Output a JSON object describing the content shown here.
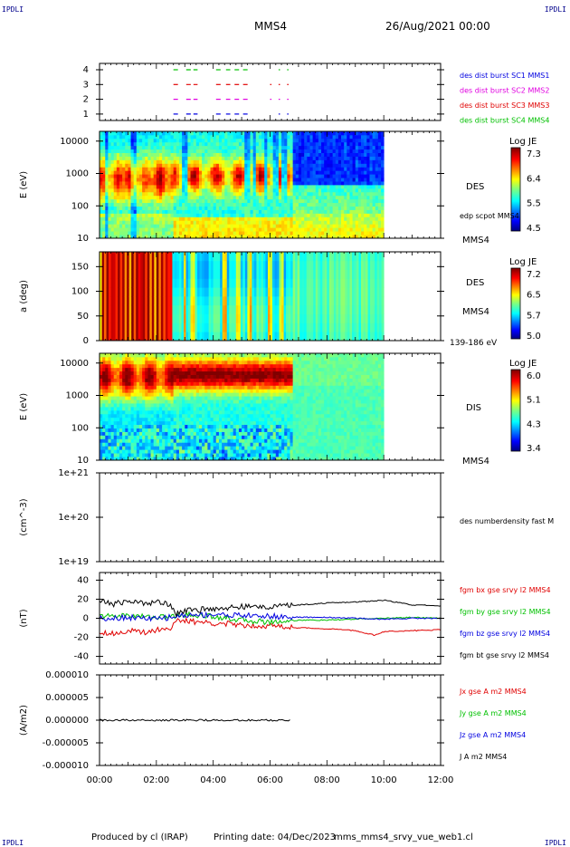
{
  "header": {
    "corner_tl": "IPDLI",
    "corner_tr": "IPDLI",
    "corner_bl": "IPDLI",
    "corner_br": "IPDLI",
    "spacecraft": "MMS4",
    "date": "26/Aug/2021 00:00"
  },
  "footer": {
    "produced_by": "Produced by cl (IRAP)",
    "printing_date": "Printing date: 04/Dec/2023",
    "script_name": "mms_mms4_srvy_vue_web1.cl"
  },
  "colors": {
    "red": "#e00000",
    "green": "#00c000",
    "blue": "#0000e0",
    "magenta": "#e000e0",
    "black": "#000000"
  },
  "chart_data": [
    {
      "id": "burst-availability",
      "type": "scatter",
      "yticks": [
        "1",
        "2",
        "3",
        "4"
      ],
      "legend": [
        {
          "label": "des dist burst SC1 MMS1",
          "color": "#0000e0"
        },
        {
          "label": "des dist burst SC2 MMS2",
          "color": "#e000e0"
        },
        {
          "label": "des dist burst SC3 MMS3",
          "color": "#e00000"
        },
        {
          "label": "des dist burst SC4 MMS4",
          "color": "#00c000"
        }
      ],
      "series": [
        {
          "level": 4,
          "color": "#00c000",
          "intervals": [
            [
              2.6,
              2.8
            ],
            [
              3.05,
              3.45
            ],
            [
              4.1,
              4.35
            ],
            [
              4.45,
              4.6
            ],
            [
              4.75,
              4.95
            ],
            [
              5.05,
              5.25
            ],
            [
              6.3,
              6.35
            ],
            [
              6.6,
              6.65
            ]
          ]
        },
        {
          "level": 3,
          "color": "#e00000",
          "intervals": [
            [
              2.6,
              2.8
            ],
            [
              3.05,
              3.45
            ],
            [
              4.1,
              4.35
            ],
            [
              4.45,
              4.6
            ],
            [
              4.75,
              4.95
            ],
            [
              5.05,
              5.25
            ],
            [
              6.0,
              6.05
            ],
            [
              6.3,
              6.35
            ],
            [
              6.6,
              6.65
            ]
          ]
        },
        {
          "level": 2,
          "color": "#e000e0",
          "intervals": [
            [
              2.6,
              2.8
            ],
            [
              3.05,
              3.45
            ],
            [
              4.1,
              4.35
            ],
            [
              4.45,
              4.6
            ],
            [
              4.75,
              4.95
            ],
            [
              5.05,
              5.25
            ],
            [
              6.0,
              6.05
            ],
            [
              6.3,
              6.35
            ],
            [
              6.6,
              6.65
            ]
          ]
        },
        {
          "level": 1,
          "color": "#0000e0",
          "intervals": [
            [
              2.6,
              2.8
            ],
            [
              3.05,
              3.45
            ],
            [
              4.1,
              4.35
            ],
            [
              4.45,
              4.6
            ],
            [
              4.75,
              4.95
            ],
            [
              5.05,
              5.25
            ],
            [
              6.3,
              6.35
            ],
            [
              6.6,
              6.65
            ]
          ]
        }
      ]
    },
    {
      "id": "des-energy-spectrogram",
      "type": "heatmap",
      "ylabel": "E (eV)",
      "yticks": [
        "10",
        "100",
        "1000",
        "10000"
      ],
      "label": "DES",
      "sublabel": "edp scpot MMS4",
      "spacecraft_label": "MMS4",
      "colorbar_title": "Log JE",
      "colorbar_ticks": [
        "7.3",
        "6.4",
        "5.5",
        "4.5"
      ]
    },
    {
      "id": "des-pitch-angle",
      "type": "heatmap",
      "ylabel": "a (deg)",
      "yticks": [
        "0",
        "50",
        "100",
        "150"
      ],
      "label": "DES",
      "spacecraft_label": "MMS4",
      "energy_range": "139-186 eV",
      "colorbar_title": "Log JE",
      "colorbar_ticks": [
        "7.2",
        "6.5",
        "5.7",
        "5.0"
      ]
    },
    {
      "id": "dis-energy-spectrogram",
      "type": "heatmap",
      "ylabel": "E (eV)",
      "yticks": [
        "10",
        "100",
        "1000",
        "10000"
      ],
      "label": "DIS",
      "spacecraft_label": "MMS4",
      "colorbar_title": "Log JE",
      "colorbar_ticks": [
        "6.0",
        "5.1",
        "4.3",
        "3.4"
      ]
    },
    {
      "id": "des-density",
      "type": "line",
      "ylabel": "(cm^-3)",
      "yticks": [
        "1e+19",
        "1e+20",
        "1e+21"
      ],
      "legend": [
        {
          "label": "des numberdensity fast M",
          "color": "#000000"
        }
      ],
      "series": []
    },
    {
      "id": "fgm-field",
      "type": "line",
      "ylabel": "(nT)",
      "yticks": [
        "-40",
        "-20",
        "0",
        "20",
        "40"
      ],
      "ylim": [
        -48,
        48
      ],
      "legend": [
        {
          "label": "fgm bx gse srvy l2 MMS4",
          "color": "#e00000"
        },
        {
          "label": "fgm by gse srvy l2 MMS4",
          "color": "#00c000"
        },
        {
          "label": "fgm bz gse srvy l2 MMS4",
          "color": "#0000e0"
        },
        {
          "label": "fgm bt gse srvy l2 MMS4",
          "color": "#000000"
        }
      ],
      "series": [
        {
          "name": "fgm bx gse srvy l2 MMS4",
          "color": "#e00000",
          "x": [
            0,
            0.5,
            1.0,
            1.5,
            2.0,
            2.5,
            2.7,
            3.0,
            4.0,
            5.0,
            6.0,
            7.0,
            8.0,
            9.0,
            9.7,
            10.0,
            11.0,
            12.0
          ],
          "y": [
            -14,
            -16,
            -13,
            -15,
            -12,
            -10,
            -3,
            -3,
            -5,
            -7,
            -8,
            -10,
            -11,
            -13,
            -18,
            -14,
            -13,
            -12
          ]
        },
        {
          "name": "fgm by gse srvy l2 MMS4",
          "color": "#00c000",
          "x": [
            0,
            1,
            2,
            2.7,
            3,
            4,
            5,
            6,
            7,
            8,
            9,
            10,
            11,
            12
          ],
          "y": [
            2,
            3,
            1,
            2,
            4,
            2,
            -2,
            -4,
            -2,
            -2,
            -1,
            0,
            1,
            0
          ]
        },
        {
          "name": "fgm bz gse srvy l2 MMS4",
          "color": "#0000e0",
          "x": [
            0,
            1,
            2,
            2.7,
            3,
            4,
            5,
            6,
            7,
            8,
            9,
            10,
            11,
            12
          ],
          "y": [
            0,
            1,
            -1,
            2,
            3,
            4,
            3,
            2,
            1,
            1,
            0,
            -1,
            0,
            0
          ]
        },
        {
          "name": "fgm bt gse srvy l2 MMS4",
          "color": "#000000",
          "x": [
            0,
            0.5,
            1.0,
            1.5,
            2.0,
            2.5,
            2.7,
            3.0,
            4.0,
            5.0,
            6.0,
            7.0,
            8.0,
            9.0,
            10.0,
            11.0,
            12.0
          ],
          "y": [
            18,
            15,
            18,
            16,
            17,
            15,
            5,
            8,
            10,
            12,
            12,
            14,
            16,
            17,
            19,
            14,
            13
          ]
        }
      ]
    },
    {
      "id": "current-density",
      "type": "line",
      "ylabel": "(A/m2)",
      "yticks": [
        "-0.000010",
        "-0.000005",
        "0.000000",
        "0.000005",
        "0.000010"
      ],
      "ylim": [
        -1e-05,
        1e-05
      ],
      "legend": [
        {
          "label": "Jx gse A m2 MMS4",
          "color": "#e00000"
        },
        {
          "label": "Jy gse A m2 MMS4",
          "color": "#00c000"
        },
        {
          "label": "Jz gse A m2 MMS4",
          "color": "#0000e0"
        },
        {
          "label": "J A m2 MMS4",
          "color": "#000000"
        }
      ],
      "series": [
        {
          "name": "J A m2 MMS4",
          "color": "#000000",
          "x": [
            0,
            6.7
          ],
          "y": [
            0,
            0
          ]
        }
      ]
    }
  ],
  "time_axis": {
    "ticks": [
      "00:00",
      "02:00",
      "04:00",
      "06:00",
      "08:00",
      "10:00",
      "12:00"
    ],
    "range": [
      0,
      12
    ]
  }
}
